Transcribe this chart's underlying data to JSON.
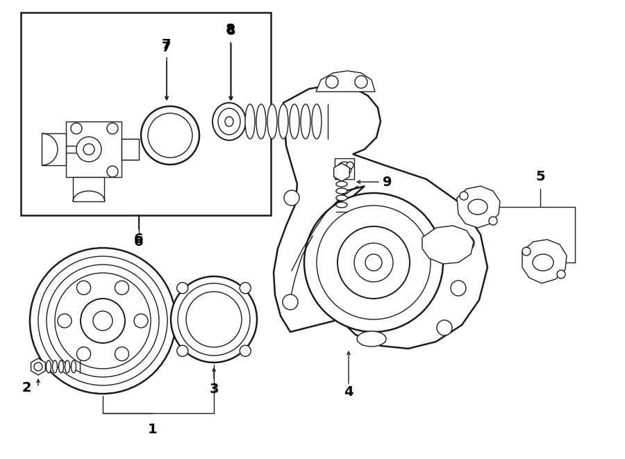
{
  "background_color": "#ffffff",
  "line_color": "#1a1a1a",
  "fig_width": 9.0,
  "fig_height": 6.61,
  "dpi": 100,
  "xlim": [
    0,
    900
  ],
  "ylim": [
    0,
    661
  ]
}
